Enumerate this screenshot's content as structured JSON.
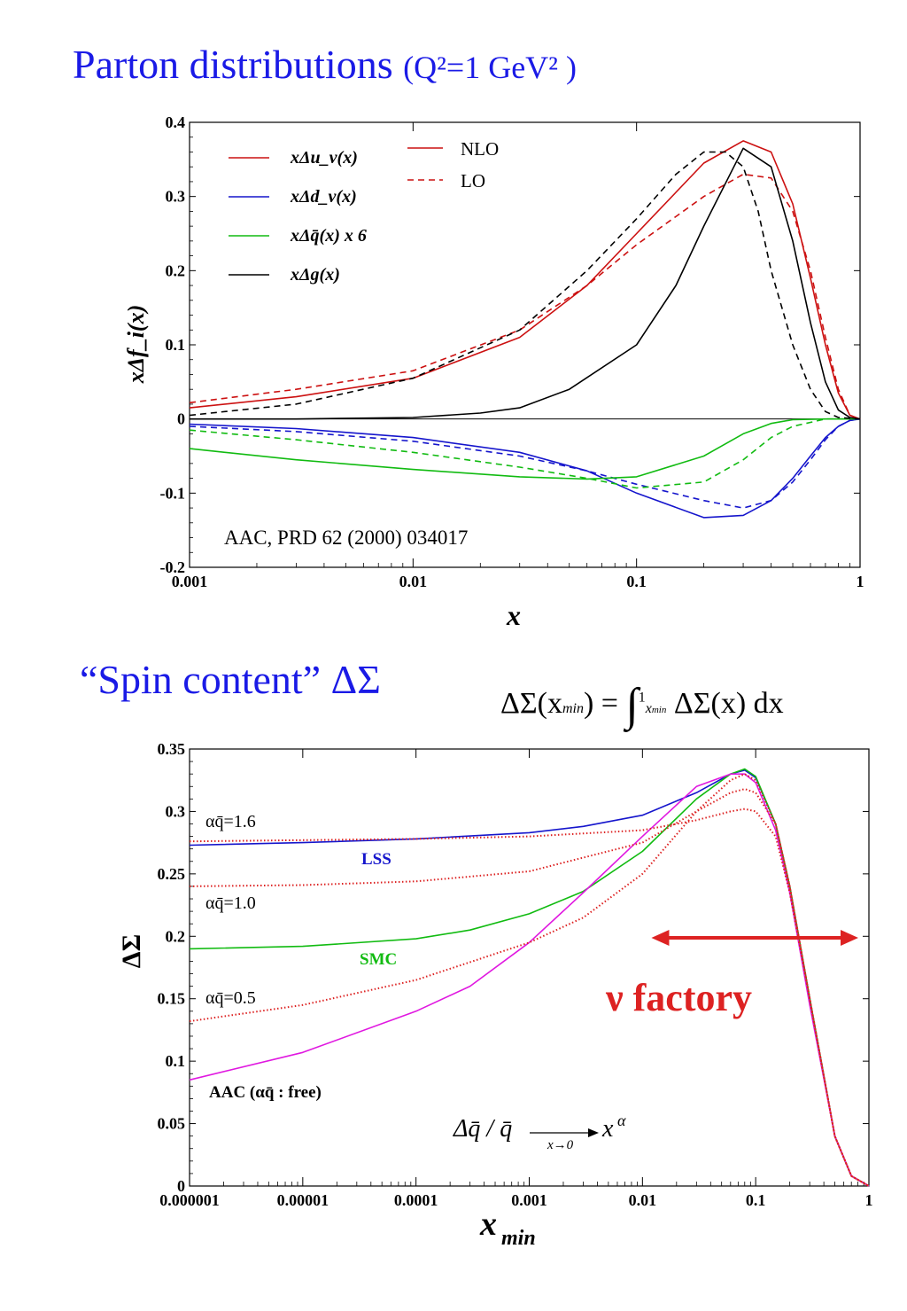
{
  "title_top": {
    "main": "Parton distributions",
    "sub": "(Q²=1 GeV² )"
  },
  "title_bottom": "“Spin content” ΔΣ",
  "formula": {
    "lhs": "ΔΣ(x",
    "lhs_sub": "min",
    "lhs_end": ") =",
    "upper": "1",
    "lower": "x",
    "lower_sub": "min",
    "rhs": "ΔΣ(x) dx"
  },
  "colors": {
    "red": "#cc1111",
    "blue": "#1515cc",
    "green": "#11bb11",
    "black": "#000000",
    "magenta": "#e018e0",
    "title_blue": "#1a1ae6",
    "dotred": "#dd2222"
  },
  "chart_data": [
    {
      "type": "line",
      "xscale": "log",
      "xlim": [
        0.001,
        1
      ],
      "ylim": [
        -0.2,
        0.4
      ],
      "xticks": [
        "0.001",
        "0.01",
        "0.1",
        "1"
      ],
      "yticks": [
        "-0.2",
        "-0.1",
        "0",
        "0.1",
        "0.2",
        "0.3",
        "0.4"
      ],
      "xlabel": "x",
      "ylabel": "xΔf_i(x)",
      "annotation": "AAC, PRD 62 (2000) 034017",
      "legend": [
        {
          "label": "xΔu_v(x)",
          "color": "#cc1111"
        },
        {
          "label": "xΔd_v(x)",
          "color": "#1515cc"
        },
        {
          "label": "xΔq̄(x) x 6",
          "color": "#11bb11"
        },
        {
          "label": "xΔg(x)",
          "color": "#000000"
        }
      ],
      "style_legend": [
        {
          "label": "NLO",
          "dash": "solid"
        },
        {
          "label": "LO",
          "dash": "dashed"
        }
      ],
      "series": [
        {
          "color": "#cc1111",
          "dash": "solid",
          "x": [
            0.001,
            0.003,
            0.01,
            0.03,
            0.06,
            0.1,
            0.2,
            0.3,
            0.4,
            0.5,
            0.6,
            0.7,
            0.8,
            0.9,
            1.0
          ],
          "y": [
            0.015,
            0.03,
            0.055,
            0.11,
            0.18,
            0.25,
            0.345,
            0.375,
            0.36,
            0.29,
            0.19,
            0.1,
            0.035,
            0.005,
            0
          ]
        },
        {
          "color": "#cc1111",
          "dash": "dashed",
          "x": [
            0.001,
            0.003,
            0.01,
            0.03,
            0.06,
            0.1,
            0.2,
            0.3,
            0.4,
            0.5,
            0.6,
            0.7,
            0.8,
            0.9,
            1.0
          ],
          "y": [
            0.022,
            0.04,
            0.065,
            0.12,
            0.18,
            0.235,
            0.3,
            0.33,
            0.325,
            0.28,
            0.2,
            0.11,
            0.04,
            0.005,
            0
          ]
        },
        {
          "color": "#1515cc",
          "dash": "solid",
          "x": [
            0.001,
            0.003,
            0.01,
            0.03,
            0.06,
            0.1,
            0.2,
            0.3,
            0.4,
            0.5,
            0.6,
            0.7,
            0.8,
            0.9,
            1.0
          ],
          "y": [
            -0.007,
            -0.013,
            -0.025,
            -0.045,
            -0.07,
            -0.1,
            -0.133,
            -0.13,
            -0.11,
            -0.08,
            -0.05,
            -0.025,
            -0.01,
            -0.002,
            0
          ]
        },
        {
          "color": "#1515cc",
          "dash": "dashed",
          "x": [
            0.001,
            0.003,
            0.01,
            0.03,
            0.06,
            0.1,
            0.2,
            0.3,
            0.4,
            0.5,
            0.6,
            0.7,
            0.8,
            0.9,
            1.0
          ],
          "y": [
            -0.01,
            -0.017,
            -0.03,
            -0.05,
            -0.07,
            -0.088,
            -0.11,
            -0.12,
            -0.11,
            -0.085,
            -0.055,
            -0.028,
            -0.01,
            -0.002,
            0
          ]
        },
        {
          "color": "#11bb11",
          "dash": "solid",
          "x": [
            0.001,
            0.003,
            0.01,
            0.03,
            0.06,
            0.1,
            0.2,
            0.3,
            0.4,
            0.5,
            0.7,
            1.0
          ],
          "y": [
            -0.04,
            -0.055,
            -0.068,
            -0.078,
            -0.081,
            -0.078,
            -0.05,
            -0.02,
            -0.006,
            -0.001,
            0,
            0
          ]
        },
        {
          "color": "#11bb11",
          "dash": "dashed",
          "x": [
            0.001,
            0.003,
            0.01,
            0.03,
            0.06,
            0.1,
            0.2,
            0.3,
            0.4,
            0.5,
            0.7,
            1.0
          ],
          "y": [
            -0.015,
            -0.028,
            -0.045,
            -0.065,
            -0.08,
            -0.093,
            -0.085,
            -0.055,
            -0.025,
            -0.01,
            0,
            0
          ]
        },
        {
          "color": "#000000",
          "dash": "solid",
          "x": [
            0.001,
            0.003,
            0.01,
            0.02,
            0.03,
            0.05,
            0.1,
            0.15,
            0.2,
            0.3,
            0.4,
            0.5,
            0.6,
            0.7,
            0.8,
            0.9,
            1.0
          ],
          "y": [
            0,
            0,
            0.002,
            0.008,
            0.015,
            0.04,
            0.1,
            0.18,
            0.26,
            0.365,
            0.34,
            0.24,
            0.13,
            0.05,
            0.012,
            0.002,
            0
          ]
        },
        {
          "color": "#000000",
          "dash": "dashed",
          "x": [
            0.001,
            0.003,
            0.01,
            0.03,
            0.06,
            0.1,
            0.15,
            0.2,
            0.25,
            0.3,
            0.35,
            0.4,
            0.5,
            0.6,
            0.7,
            0.8,
            1.0
          ],
          "y": [
            0.005,
            0.02,
            0.055,
            0.12,
            0.2,
            0.27,
            0.33,
            0.36,
            0.36,
            0.34,
            0.28,
            0.2,
            0.1,
            0.04,
            0.01,
            0.002,
            0
          ]
        }
      ]
    },
    {
      "type": "line",
      "xscale": "log",
      "xlim": [
        1e-06,
        1
      ],
      "ylim": [
        0,
        0.35
      ],
      "xticks": [
        "0.000001",
        "0.00001",
        "0.0001",
        "0.001",
        "0.01",
        "0.1",
        "1"
      ],
      "yticks": [
        "0",
        "0.05",
        "0.1",
        "0.15",
        "0.2",
        "0.25",
        "0.3",
        "0.35"
      ],
      "xlabel": "x_min",
      "ylabel": "ΔΣ",
      "labels": [
        {
          "text": "LSS",
          "color": "#1515cc"
        },
        {
          "text": "SMC",
          "color": "#11bb11"
        },
        {
          "text": "AAC (αq̄ : free)",
          "color": "#000000"
        },
        {
          "text": "αq̄=1.6",
          "color": "#000000"
        },
        {
          "text": "αq̄=1.0",
          "color": "#000000"
        },
        {
          "text": "αq̄=0.5",
          "color": "#000000"
        }
      ],
      "annotation": "ν factory",
      "formula": {
        "lhs": "Δq̄ / q̄",
        "arrow_sub": "x→0",
        "rhs": "x",
        "rhs_sup": "α"
      },
      "nu_factory_range": [
        0.012,
        1
      ],
      "series": [
        {
          "name": "LSS",
          "color": "#1515cc",
          "dash": "solid",
          "x": [
            1e-06,
            1e-05,
            0.0001,
            0.001,
            0.003,
            0.01,
            0.03,
            0.06,
            0.08,
            0.1,
            0.15,
            0.2,
            0.3,
            0.5,
            0.7,
            1.0
          ],
          "y": [
            0.273,
            0.275,
            0.278,
            0.283,
            0.288,
            0.297,
            0.315,
            0.33,
            0.333,
            0.327,
            0.29,
            0.24,
            0.15,
            0.04,
            0.008,
            0
          ]
        },
        {
          "name": "SMC",
          "color": "#11bb11",
          "dash": "solid",
          "x": [
            1e-06,
            1e-05,
            0.0001,
            0.0003,
            0.001,
            0.003,
            0.01,
            0.03,
            0.06,
            0.08,
            0.1,
            0.15,
            0.2,
            0.3,
            0.5,
            0.7,
            1.0
          ],
          "y": [
            0.19,
            0.192,
            0.198,
            0.205,
            0.218,
            0.236,
            0.268,
            0.31,
            0.33,
            0.334,
            0.328,
            0.29,
            0.24,
            0.15,
            0.04,
            0.008,
            0
          ]
        },
        {
          "name": "AAC",
          "color": "#e018e0",
          "dash": "solid",
          "x": [
            1e-06,
            1e-05,
            0.0001,
            0.0003,
            0.001,
            0.003,
            0.01,
            0.03,
            0.06,
            0.08,
            0.1,
            0.15,
            0.2,
            0.3,
            0.5,
            0.7,
            1.0
          ],
          "y": [
            0.085,
            0.107,
            0.14,
            0.16,
            0.195,
            0.235,
            0.28,
            0.32,
            0.33,
            0.33,
            0.323,
            0.285,
            0.235,
            0.145,
            0.04,
            0.008,
            0
          ]
        },
        {
          "name": "α=1.6",
          "color": "#dd2222",
          "dash": "dotted",
          "x": [
            1e-06,
            1e-05,
            0.0001,
            0.001,
            0.01,
            0.03,
            0.06,
            0.08,
            0.1,
            0.15,
            0.2,
            0.3,
            0.5,
            0.7,
            1.0
          ],
          "y": [
            0.276,
            0.277,
            0.278,
            0.28,
            0.285,
            0.293,
            0.3,
            0.302,
            0.3,
            0.28,
            0.235,
            0.15,
            0.04,
            0.008,
            0
          ]
        },
        {
          "name": "α=1.0",
          "color": "#dd2222",
          "dash": "dotted",
          "x": [
            1e-06,
            1e-05,
            0.0001,
            0.001,
            0.01,
            0.03,
            0.06,
            0.08,
            0.1,
            0.15,
            0.2,
            0.3,
            0.5,
            0.7,
            1.0
          ],
          "y": [
            0.24,
            0.241,
            0.244,
            0.252,
            0.275,
            0.3,
            0.315,
            0.318,
            0.315,
            0.29,
            0.24,
            0.15,
            0.04,
            0.008,
            0
          ]
        },
        {
          "name": "α=0.5",
          "color": "#dd2222",
          "dash": "dotted",
          "x": [
            1e-06,
            1e-05,
            0.0001,
            0.001,
            0.003,
            0.01,
            0.03,
            0.06,
            0.08,
            0.1,
            0.15,
            0.2,
            0.3,
            0.5,
            0.7,
            1.0
          ],
          "y": [
            0.132,
            0.145,
            0.165,
            0.195,
            0.215,
            0.25,
            0.3,
            0.325,
            0.33,
            0.325,
            0.29,
            0.24,
            0.15,
            0.04,
            0.008,
            0
          ]
        }
      ]
    }
  ]
}
